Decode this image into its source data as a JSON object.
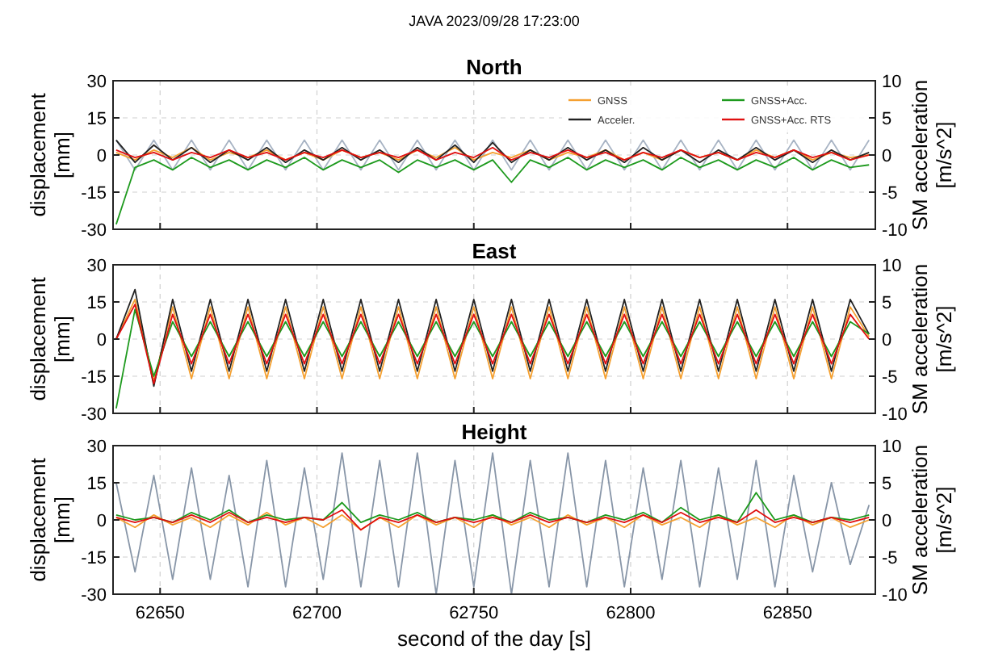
{
  "chart_data": [
    {
      "type": "line",
      "title": "North",
      "annotations": [
        "JAVA 2023/09/28 17:23:00"
      ],
      "ylabel": "displacement [mm]",
      "y2label": "SM acceleration [m/s^2]",
      "xlim": [
        62635,
        62878
      ],
      "xticks": [
        62650,
        62700,
        62750,
        62800,
        62850
      ],
      "ylim": [
        -30,
        30
      ],
      "yticks": [
        -30,
        -15,
        0,
        15,
        30
      ],
      "y2lim": [
        -10,
        10
      ],
      "y2ticks": [
        -10,
        -5,
        0,
        5,
        10
      ],
      "grid": true,
      "legend": "top right",
      "tick_labels": "y",
      "x": [
        62636,
        62642,
        62648,
        62654,
        62660,
        62666,
        62672,
        62678,
        62684,
        62690,
        62696,
        62702,
        62708,
        62714,
        62720,
        62726,
        62732,
        62738,
        62744,
        62750,
        62756,
        62762,
        62768,
        62774,
        62780,
        62786,
        62792,
        62798,
        62804,
        62810,
        62816,
        62822,
        62828,
        62834,
        62840,
        62846,
        62852,
        62858,
        62864,
        62870,
        62876
      ],
      "series": [
        {
          "color": "#a8b4c4",
          "axis": "y2",
          "values": [
            2,
            -2,
            2,
            -2,
            2,
            -2,
            2,
            -2,
            2,
            -2,
            2,
            -2,
            2,
            -2,
            2,
            -2,
            2,
            -2,
            2,
            -2,
            2,
            -2,
            2,
            -2,
            2,
            -2,
            2,
            -2,
            2,
            -2,
            2,
            -2,
            2,
            -2,
            2,
            -2,
            2,
            -2,
            2,
            -2,
            2
          ]
        },
        {
          "name": "GNSS",
          "color": "#f5a030",
          "values": [
            1,
            -2,
            2,
            -1,
            3,
            -2,
            1,
            -1,
            2,
            -2,
            1,
            -2,
            2,
            -1,
            1,
            -2,
            2,
            -1,
            3,
            -2,
            1,
            -1,
            2,
            -2,
            1,
            -1,
            2,
            -2,
            1,
            -2,
            2,
            -1,
            1,
            -2,
            2,
            -1,
            2,
            -2,
            1,
            -1,
            0
          ]
        },
        {
          "name": "Acceler.",
          "color": "#222222",
          "values": [
            6,
            -3,
            4,
            -2,
            3,
            -3,
            2,
            -2,
            3,
            -3,
            2,
            -2,
            3,
            -2,
            2,
            -3,
            3,
            -2,
            4,
            -3,
            5,
            -3,
            2,
            -2,
            3,
            -2,
            2,
            -3,
            3,
            -2,
            2,
            -3,
            2,
            -2,
            3,
            -2,
            2,
            -3,
            2,
            -2,
            1
          ]
        },
        {
          "name": "GNSS+Acc.",
          "color": "#1e9a1e",
          "values": [
            -28,
            -5,
            -2,
            -6,
            -1,
            -5,
            -2,
            -6,
            -2,
            -5,
            -1,
            -6,
            -2,
            -5,
            -2,
            -7,
            -2,
            -5,
            -2,
            -6,
            -2,
            -11,
            -2,
            -5,
            -1,
            -6,
            -2,
            -5,
            -2,
            -6,
            -1,
            -5,
            -2,
            -6,
            -2,
            -5,
            -1,
            -6,
            -2,
            -5,
            -4
          ]
        },
        {
          "name": "GNSS+Acc. RTS",
          "color": "#e01010",
          "values": [
            2,
            -1,
            1,
            -2,
            1,
            -1,
            2,
            -1,
            1,
            -2,
            1,
            -1,
            2,
            -1,
            1,
            -1,
            2,
            -2,
            1,
            -1,
            3,
            -2,
            1,
            -1,
            2,
            -1,
            1,
            -2,
            1,
            -1,
            2,
            -1,
            1,
            -2,
            1,
            -1,
            2,
            -1,
            1,
            -2,
            0
          ]
        }
      ]
    },
    {
      "type": "line",
      "title": "East",
      "ylabel": "displacement [mm]",
      "y2label": "SM acceleration [m/s^2]",
      "xlim": [
        62635,
        62878
      ],
      "xticks": [
        62650,
        62700,
        62750,
        62800,
        62850
      ],
      "ylim": [
        -30,
        30
      ],
      "yticks": [
        -30,
        -15,
        0,
        15,
        30
      ],
      "y2lim": [
        -10,
        10
      ],
      "y2ticks": [
        -10,
        -5,
        0,
        5,
        10
      ],
      "grid": true,
      "tick_labels": "y",
      "x": [
        62636,
        62642,
        62648,
        62654,
        62660,
        62666,
        62672,
        62678,
        62684,
        62690,
        62696,
        62702,
        62708,
        62714,
        62720,
        62726,
        62732,
        62738,
        62744,
        62750,
        62756,
        62762,
        62768,
        62774,
        62780,
        62786,
        62792,
        62798,
        62804,
        62810,
        62816,
        62822,
        62828,
        62834,
        62840,
        62846,
        62852,
        62858,
        62864,
        62870,
        62876
      ],
      "series": [
        {
          "color": "#f5a030",
          "values": [
            0,
            16,
            -17,
            13,
            -16,
            13,
            -16,
            13,
            -16,
            13,
            -16,
            13,
            -16,
            13,
            -16,
            13,
            -16,
            13,
            -16,
            13,
            -16,
            13,
            -16,
            13,
            -16,
            13,
            -16,
            13,
            -16,
            13,
            -16,
            13,
            -16,
            13,
            -16,
            13,
            -16,
            13,
            -16,
            13,
            1
          ]
        },
        {
          "color": "#222222",
          "values": [
            0,
            20,
            -19,
            16,
            -13,
            16,
            -13,
            16,
            -13,
            16,
            -13,
            16,
            -13,
            16,
            -13,
            16,
            -13,
            16,
            -13,
            16,
            -13,
            16,
            -13,
            16,
            -13,
            16,
            -13,
            16,
            -13,
            16,
            -13,
            16,
            -13,
            16,
            -13,
            16,
            -13,
            16,
            -13,
            16,
            2
          ]
        },
        {
          "color": "#1e9a1e",
          "values": [
            -28,
            12,
            -15,
            7,
            -7,
            7,
            -7,
            7,
            -7,
            7,
            -7,
            7,
            -7,
            7,
            -7,
            7,
            -7,
            7,
            -7,
            7,
            -7,
            7,
            -7,
            7,
            -7,
            7,
            -7,
            7,
            -7,
            7,
            -7,
            7,
            -7,
            7,
            -7,
            7,
            -7,
            7,
            -7,
            7,
            2
          ]
        },
        {
          "color": "#e01010",
          "values": [
            0,
            14,
            -18,
            10,
            -10,
            10,
            -10,
            10,
            -10,
            10,
            -10,
            10,
            -10,
            10,
            -10,
            10,
            -10,
            10,
            -10,
            10,
            -10,
            10,
            -10,
            10,
            -10,
            10,
            -10,
            10,
            -10,
            10,
            -10,
            10,
            -10,
            10,
            -10,
            10,
            -10,
            10,
            -10,
            10,
            0
          ]
        }
      ]
    },
    {
      "type": "line",
      "title": "Height",
      "ylabel": "displacement [mm]",
      "y2label": "SM acceleration [m/s^2]",
      "xlabel": "second of the day [s]",
      "xlim": [
        62635,
        62878
      ],
      "xticks": [
        62650,
        62700,
        62750,
        62800,
        62850
      ],
      "ylim": [
        -30,
        30
      ],
      "yticks": [
        -30,
        -15,
        0,
        15,
        30
      ],
      "y2lim": [
        -10,
        10
      ],
      "y2ticks": [
        -10,
        -5,
        0,
        5,
        10
      ],
      "grid": true,
      "x": [
        62636,
        62642,
        62648,
        62654,
        62660,
        62666,
        62672,
        62678,
        62684,
        62690,
        62696,
        62702,
        62708,
        62714,
        62720,
        62726,
        62732,
        62738,
        62744,
        62750,
        62756,
        62762,
        62768,
        62774,
        62780,
        62786,
        62792,
        62798,
        62804,
        62810,
        62816,
        62822,
        62828,
        62834,
        62840,
        62846,
        62852,
        62858,
        62864,
        62870,
        62876
      ],
      "series": [
        {
          "color": "#8896a8",
          "axis": "y2",
          "values": [
            5,
            -7,
            6,
            -8,
            7,
            -8,
            6,
            -9,
            8,
            -9,
            7,
            -8,
            9,
            -9,
            8,
            -9,
            9,
            -10,
            8,
            -9,
            9,
            -10,
            8,
            -9,
            9,
            -9,
            8,
            -9,
            7,
            -8,
            8,
            -9,
            7,
            -8,
            8,
            -9,
            6,
            -7,
            5,
            -6,
            2
          ]
        },
        {
          "color": "#f5a030",
          "values": [
            1,
            -3,
            2,
            -2,
            1,
            -3,
            2,
            -2,
            3,
            -2,
            1,
            -3,
            2,
            -4,
            1,
            -3,
            2,
            -2,
            1,
            -3,
            2,
            -2,
            1,
            -3,
            2,
            -2,
            1,
            -3,
            2,
            -2,
            1,
            -3,
            2,
            -2,
            1,
            -3,
            2,
            -2,
            1,
            -3,
            0
          ]
        },
        {
          "color": "#1e9a1e",
          "values": [
            2,
            0,
            1,
            -1,
            3,
            0,
            4,
            -1,
            2,
            0,
            1,
            0,
            7,
            -1,
            2,
            0,
            3,
            -1,
            1,
            0,
            2,
            -1,
            3,
            0,
            1,
            -1,
            2,
            0,
            3,
            -1,
            5,
            0,
            2,
            -1,
            11,
            0,
            2,
            -1,
            1,
            0,
            2
          ]
        },
        {
          "color": "#e01010",
          "values": [
            1,
            -1,
            1,
            -1,
            2,
            -1,
            3,
            -1,
            1,
            -1,
            1,
            0,
            4,
            -4,
            1,
            -1,
            2,
            -1,
            1,
            -1,
            1,
            -1,
            2,
            -1,
            1,
            -1,
            1,
            -1,
            2,
            -1,
            3,
            -1,
            1,
            -1,
            4,
            -1,
            1,
            -1,
            1,
            -1,
            1
          ]
        }
      ]
    }
  ]
}
